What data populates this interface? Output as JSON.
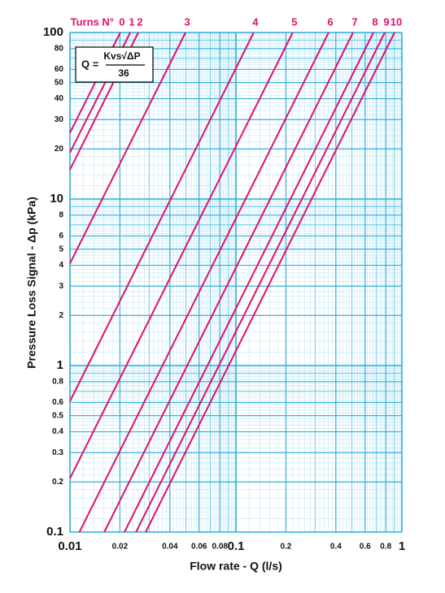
{
  "chart_data": {
    "type": "line",
    "x_label": "Flow rate - Q (l/s)",
    "y_label": "Pressure Loss Signal - Δp (kPa)",
    "legend_title": "Turns N°",
    "formula": {
      "lhs": "Q =",
      "numerator": "Kvs√ΔP",
      "denominator": "36"
    },
    "log_x": true,
    "log_y": true,
    "grid": true,
    "minor_grid": true,
    "xlim": [
      0.01,
      1
    ],
    "ylim": [
      0.1,
      100
    ],
    "xticks": [
      0.01,
      0.02,
      0.04,
      0.06,
      0.08,
      0.1,
      0.2,
      0.4,
      0.6,
      0.8,
      1
    ],
    "yticks": [
      0.1,
      0.2,
      0.3,
      0.4,
      0.5,
      0.6,
      0.8,
      1,
      2,
      3,
      4,
      5,
      6,
      8,
      10,
      20,
      30,
      40,
      50,
      60,
      80,
      100
    ],
    "series": [
      {
        "name": "0",
        "color": "#e0106e",
        "x": [
          0.01,
          0.0201
        ],
        "values": [
          25,
          100
        ]
      },
      {
        "name": "1",
        "color": "#e0106e",
        "x": [
          0.01,
          0.0231
        ],
        "values": [
          19,
          100
        ]
      },
      {
        "name": "2",
        "color": "#e0106e",
        "x": [
          0.01,
          0.0258
        ],
        "values": [
          15,
          100
        ]
      },
      {
        "name": "3",
        "color": "#e0106e",
        "x": [
          0.01,
          0.0497
        ],
        "values": [
          4.1,
          100
        ]
      },
      {
        "name": "4",
        "color": "#e0106e",
        "x": [
          0.01,
          0.128
        ],
        "values": [
          0.61,
          100
        ]
      },
      {
        "name": "5",
        "color": "#e0106e",
        "x": [
          0.01,
          0.22
        ],
        "values": [
          0.21,
          100
        ]
      },
      {
        "name": "6",
        "color": "#e0106e",
        "x": [
          0.0114,
          0.362
        ],
        "values": [
          0.1,
          100
        ]
      },
      {
        "name": "7",
        "color": "#e0106e",
        "x": [
          0.0161,
          0.508
        ],
        "values": [
          0.1,
          100
        ]
      },
      {
        "name": "8",
        "color": "#e0106e",
        "x": [
          0.0213,
          0.674
        ],
        "values": [
          0.1,
          100
        ]
      },
      {
        "name": "9",
        "color": "#e0106e",
        "x": [
          0.025,
          0.789
        ],
        "values": [
          0.1,
          100
        ]
      },
      {
        "name": "10",
        "color": "#e0106e",
        "x": [
          0.0286,
          0.903
        ],
        "values": [
          0.1,
          100
        ]
      }
    ]
  }
}
